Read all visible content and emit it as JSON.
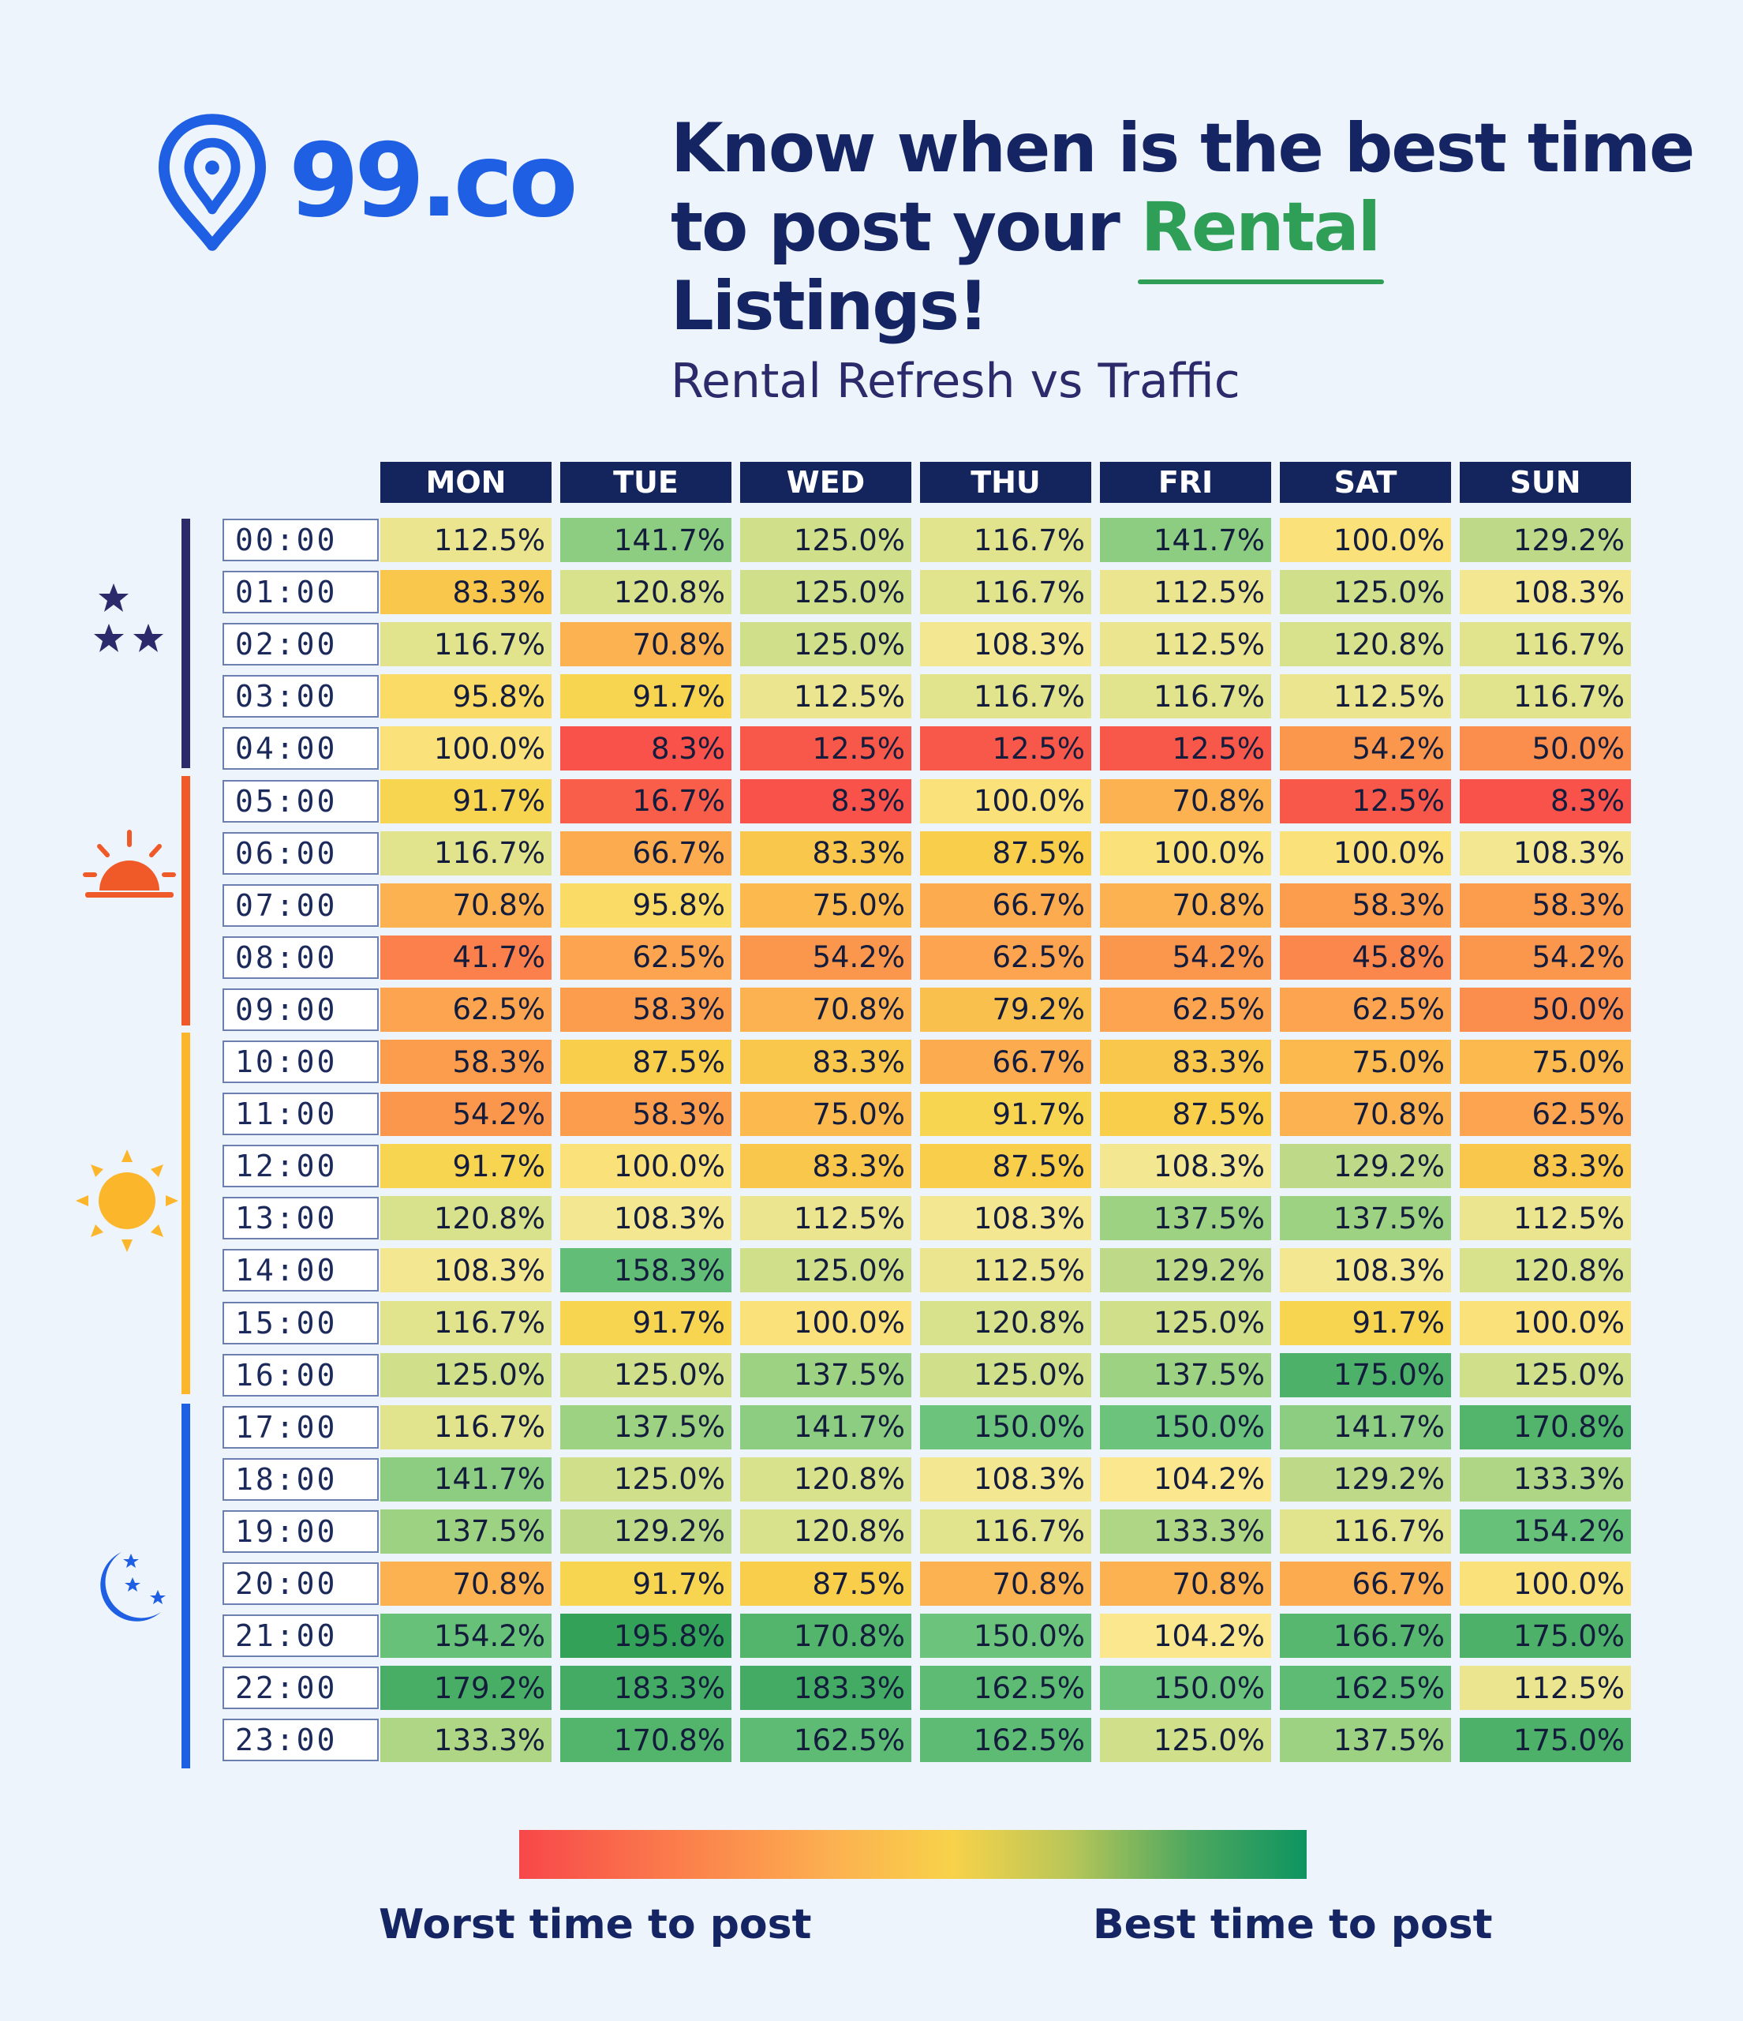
{
  "brand": {
    "logo_text": "99.co",
    "brand_color": "#1e5fe3"
  },
  "headline": {
    "line1": "Know when is the best time",
    "line2_pre": "to post your ",
    "line2_highlight": "Rental",
    "line2_post": " Listings!"
  },
  "chart_data": {
    "type": "heatmap",
    "title": "Rental Refresh vs Traffic",
    "columns": [
      "MON",
      "TUE",
      "WED",
      "THU",
      "FRI",
      "SAT",
      "SUN"
    ],
    "rows": [
      "00:00",
      "01:00",
      "02:00",
      "03:00",
      "04:00",
      "05:00",
      "06:00",
      "07:00",
      "08:00",
      "09:00",
      "10:00",
      "11:00",
      "12:00",
      "13:00",
      "14:00",
      "15:00",
      "16:00",
      "17:00",
      "18:00",
      "19:00",
      "20:00",
      "21:00",
      "22:00",
      "23:00"
    ],
    "values": [
      [
        "112.5%",
        "141.7%",
        "125.0%",
        "116.7%",
        "141.7%",
        "100.0%",
        "129.2%"
      ],
      [
        "83.3%",
        "120.8%",
        "125.0%",
        "116.7%",
        "112.5%",
        "125.0%",
        "108.3%"
      ],
      [
        "116.7%",
        "70.8%",
        "125.0%",
        "108.3%",
        "112.5%",
        "120.8%",
        "116.7%"
      ],
      [
        "95.8%",
        "91.7%",
        "112.5%",
        "116.7%",
        "116.7%",
        "112.5%",
        "116.7%"
      ],
      [
        "100.0%",
        "8.3%",
        "12.5%",
        "12.5%",
        "12.5%",
        "54.2%",
        "50.0%"
      ],
      [
        "91.7%",
        "16.7%",
        "8.3%",
        "100.0%",
        "70.8%",
        "12.5%",
        "8.3%"
      ],
      [
        "116.7%",
        "66.7%",
        "83.3%",
        "87.5%",
        "100.0%",
        "100.0%",
        "108.3%"
      ],
      [
        "70.8%",
        "95.8%",
        "75.0%",
        "66.7%",
        "70.8%",
        "58.3%",
        "58.3%"
      ],
      [
        "41.7%",
        "62.5%",
        "54.2%",
        "62.5%",
        "54.2%",
        "45.8%",
        "54.2%"
      ],
      [
        "62.5%",
        "58.3%",
        "70.8%",
        "79.2%",
        "62.5%",
        "62.5%",
        "50.0%"
      ],
      [
        "58.3%",
        "87.5%",
        "83.3%",
        "66.7%",
        "83.3%",
        "75.0%",
        "75.0%"
      ],
      [
        "54.2%",
        "58.3%",
        "75.0%",
        "91.7%",
        "87.5%",
        "70.8%",
        "62.5%"
      ],
      [
        "91.7%",
        "100.0%",
        "83.3%",
        "87.5%",
        "108.3%",
        "129.2%",
        "83.3%"
      ],
      [
        "120.8%",
        "108.3%",
        "112.5%",
        "108.3%",
        "137.5%",
        "137.5%",
        "112.5%"
      ],
      [
        "108.3%",
        "158.3%",
        "125.0%",
        "112.5%",
        "129.2%",
        "108.3%",
        "120.8%"
      ],
      [
        "116.7%",
        "91.7%",
        "100.0%",
        "120.8%",
        "125.0%",
        "91.7%",
        "100.0%"
      ],
      [
        "125.0%",
        "125.0%",
        "137.5%",
        "125.0%",
        "137.5%",
        "175.0%",
        "125.0%"
      ],
      [
        "116.7%",
        "137.5%",
        "141.7%",
        "150.0%",
        "150.0%",
        "141.7%",
        "170.8%"
      ],
      [
        "141.7%",
        "125.0%",
        "120.8%",
        "108.3%",
        "104.2%",
        "129.2%",
        "133.3%"
      ],
      [
        "137.5%",
        "129.2%",
        "120.8%",
        "116.7%",
        "133.3%",
        "116.7%",
        "154.2%"
      ],
      [
        "70.8%",
        "91.7%",
        "87.5%",
        "70.8%",
        "70.8%",
        "66.7%",
        "100.0%"
      ],
      [
        "154.2%",
        "195.8%",
        "170.8%",
        "150.0%",
        "104.2%",
        "166.7%",
        "175.0%"
      ],
      [
        "179.2%",
        "183.3%",
        "183.3%",
        "162.5%",
        "150.0%",
        "162.5%",
        "112.5%"
      ],
      [
        "133.3%",
        "170.8%",
        "162.5%",
        "162.5%",
        "125.0%",
        "137.5%",
        "175.0%"
      ]
    ],
    "color_scale": [
      "#f7474a",
      "#fb7d4b",
      "#fcb150",
      "#f8d249",
      "#fbe992",
      "#cfdf8a",
      "#6cc47c",
      "#2f9e56"
    ]
  },
  "periods": [
    {
      "name": "night",
      "icon": "stars-icon",
      "color": "#2b2a6b"
    },
    {
      "name": "sunrise",
      "icon": "sunrise-icon",
      "color": "#f05a28"
    },
    {
      "name": "day",
      "icon": "sun-icon",
      "color": "#fbb62b"
    },
    {
      "name": "evening",
      "icon": "moon-icon",
      "color": "#1e5fe3"
    }
  ],
  "legend": {
    "worst_label": "Worst time to post",
    "best_label": "Best time to post"
  }
}
